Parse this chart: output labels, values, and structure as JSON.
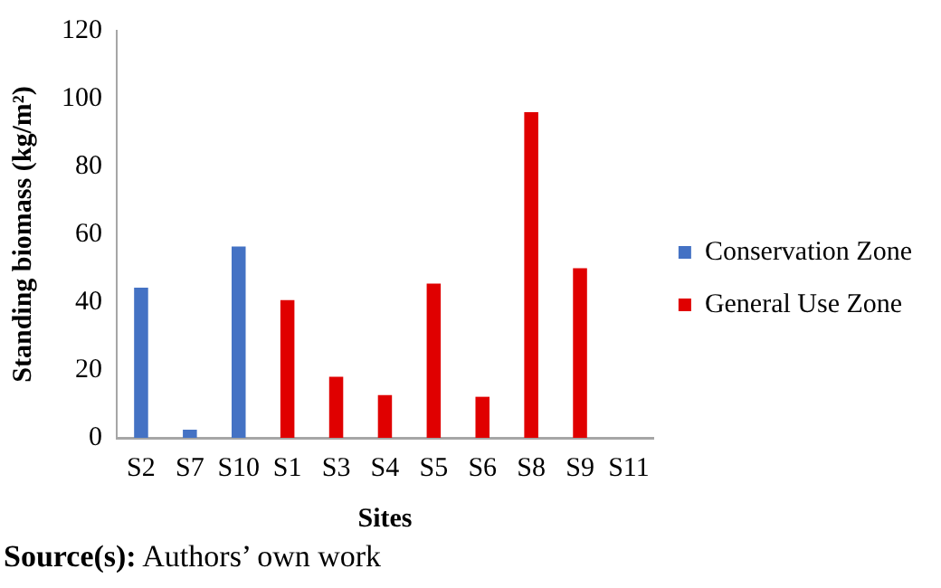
{
  "chart_data": {
    "type": "bar",
    "xlabel": "Sites",
    "ylabel": "Standing biomass (kg/m²)",
    "categories": [
      "S2",
      "S7",
      "S10",
      "S1",
      "S3",
      "S4",
      "S5",
      "S6",
      "S8",
      "S9",
      "S11"
    ],
    "series": [
      {
        "name": "Conservation Zone",
        "color": "#4472c4",
        "values": [
          44.3,
          2.4,
          56.4,
          null,
          null,
          null,
          null,
          null,
          null,
          null,
          null
        ]
      },
      {
        "name": "General Use Zone",
        "color": "#e00000",
        "values": [
          null,
          null,
          null,
          40.6,
          18.0,
          12.6,
          45.5,
          12.1,
          96.0,
          50.0,
          0
        ]
      }
    ],
    "ylim": [
      0,
      120
    ],
    "yticks": [
      0,
      20,
      40,
      60,
      80,
      100,
      120
    ],
    "grid": false,
    "legend": "right",
    "annotations": [
      "Source(s): Authors’ own work"
    ]
  }
}
